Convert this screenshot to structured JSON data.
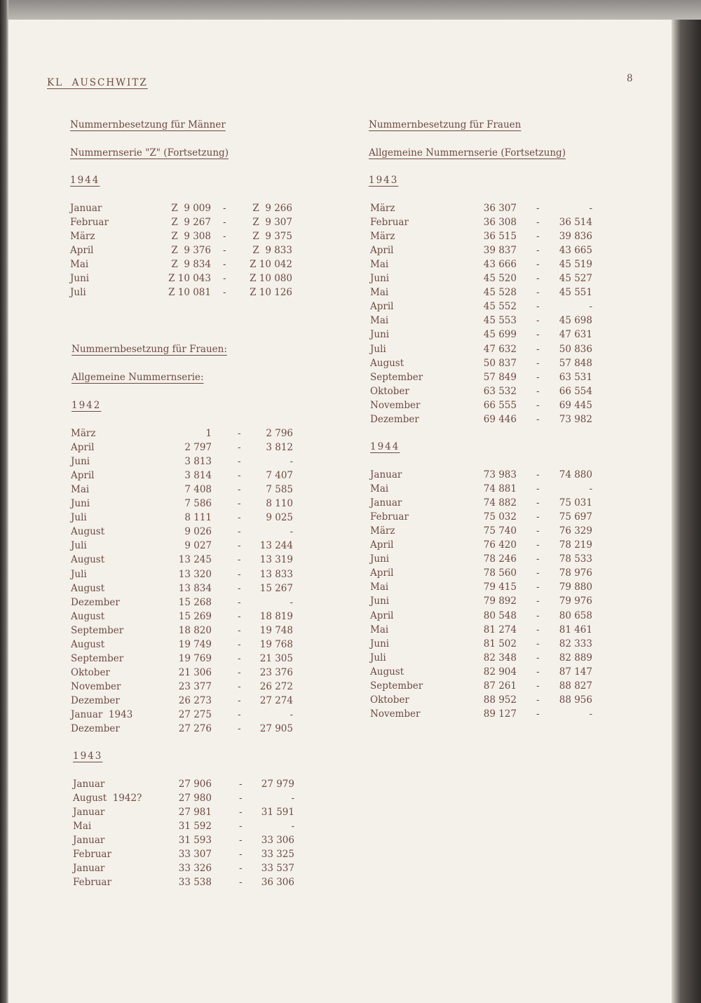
{
  "header": {
    "title": "KL  AUSCHWITZ",
    "page_number": "8"
  },
  "left": {
    "men_heading": "Nummernbesetzung für Männer",
    "z_series_heading": "Nummernserie \"Z\" (Fortsetzung)",
    "z_year": "1944",
    "z_rows": [
      [
        "Januar",
        "Z  9 009",
        "-",
        "Z  9 266"
      ],
      [
        "Februar",
        "Z  9 267",
        "-",
        "Z  9 307"
      ],
      [
        "März",
        "Z  9 308",
        "-",
        "Z  9 375"
      ],
      [
        "April",
        "Z  9 376",
        "-",
        "Z  9 833"
      ],
      [
        "Mai",
        "Z  9 834",
        "-",
        "Z 10 042"
      ],
      [
        "Juni",
        "Z 10 043",
        "-",
        "Z 10 080"
      ],
      [
        "Juli",
        "Z 10 081",
        "-",
        "Z 10 126"
      ]
    ],
    "women_heading": "Nummernbesetzung für Frauen:",
    "general_heading": "Allgemeine Nummernserie:",
    "year_1942": "1942",
    "rows_1942": [
      [
        "März",
        "1",
        "-",
        "2 796"
      ],
      [
        "April",
        "2 797",
        "-",
        "3 812"
      ],
      [
        "Juni",
        "3 813",
        "-",
        "-"
      ],
      [
        "April",
        "3 814",
        "-",
        "7 407"
      ],
      [
        "Mai",
        "7 408",
        "-",
        "7 585"
      ],
      [
        "Juni",
        "7 586",
        "-",
        "8 110"
      ],
      [
        "Juli",
        "8 111",
        "-",
        "9 025"
      ],
      [
        "August",
        "9 026",
        "-",
        "-"
      ],
      [
        "Juli",
        "9 027",
        "-",
        "13 244"
      ],
      [
        "August",
        "13 245",
        "-",
        "13 319"
      ],
      [
        "Juli",
        "13 320",
        "-",
        "13 833"
      ],
      [
        "August",
        "13 834",
        "-",
        "15 267"
      ],
      [
        "Dezember",
        "15 268",
        "-",
        "-"
      ],
      [
        "August",
        "15 269",
        "-",
        "18 819"
      ],
      [
        "September",
        "18 820",
        "-",
        "19 748"
      ],
      [
        "August",
        "19 749",
        "-",
        "19 768"
      ],
      [
        "September",
        "19 769",
        "-",
        "21 305"
      ],
      [
        "Oktober",
        "21 306",
        "-",
        "23 376"
      ],
      [
        "November",
        "23 377",
        "-",
        "26 272"
      ],
      [
        "Dezember",
        "26 273",
        "-",
        "27 274"
      ],
      [
        "Januar  1943",
        "27 275",
        "-",
        "-"
      ],
      [
        "Dezember",
        "27 276",
        "-",
        "27 905"
      ]
    ],
    "year_1943": "1943",
    "rows_1943": [
      [
        "Januar",
        "27 906",
        "-",
        "27 979"
      ],
      [
        "August  1942?",
        "27 980",
        "-",
        "-"
      ],
      [
        "Januar",
        "27 981",
        "-",
        "31 591"
      ],
      [
        "Mai",
        "31 592",
        "-",
        "-"
      ],
      [
        "Januar",
        "31 593",
        "-",
        "33 306"
      ],
      [
        "Februar",
        "33 307",
        "-",
        "33 325"
      ],
      [
        "Januar",
        "33 326",
        "-",
        "33 537"
      ],
      [
        "Februar",
        "33 538",
        "-",
        "36 306"
      ]
    ]
  },
  "right": {
    "women_heading": "Nummernbesetzung für Frauen",
    "general_heading": "Allgemeine Nummernserie (Fortsetzung)",
    "year_1943": "1943",
    "rows_1943": [
      [
        "März",
        "36 307",
        "-",
        "-"
      ],
      [
        "Februar",
        "36 308",
        "-",
        "36 514"
      ],
      [
        "März",
        "36 515",
        "-",
        "39 836"
      ],
      [
        "April",
        "39 837",
        "-",
        "43 665"
      ],
      [
        "Mai",
        "43 666",
        "-",
        "45 519"
      ],
      [
        "Juni",
        "45 520",
        "-",
        "45 527"
      ],
      [
        "Mai",
        "45 528",
        "-",
        "45 551"
      ],
      [
        "April",
        "45 552",
        "-",
        "-"
      ],
      [
        "Mai",
        "45 553",
        "-",
        "45 698"
      ],
      [
        "Juni",
        "45 699",
        "-",
        "47 631"
      ],
      [
        "Juli",
        "47 632",
        "-",
        "50 836"
      ],
      [
        "August",
        "50 837",
        "-",
        "57 848"
      ],
      [
        "September",
        "57 849",
        "-",
        "63 531"
      ],
      [
        "Oktober",
        "63 532",
        "-",
        "66 554"
      ],
      [
        "November",
        "66 555",
        "-",
        "69 445"
      ],
      [
        "Dezember",
        "69 446",
        "-",
        "73 982"
      ]
    ],
    "year_1944": "1944",
    "rows_1944": [
      [
        "Januar",
        "73 983",
        "-",
        "74 880"
      ],
      [
        "Mai",
        "74 881",
        "-",
        "-"
      ],
      [
        "Januar",
        "74 882",
        "-",
        "75 031"
      ],
      [
        "Februar",
        "75 032",
        "-",
        "75 697"
      ],
      [
        "März",
        "75 740",
        "-",
        "76 329"
      ],
      [
        "April",
        "76 420",
        "-",
        "78 219"
      ],
      [
        "Juni",
        "78 246",
        "-",
        "78 533"
      ],
      [
        "April",
        "78 560",
        "-",
        "78 976"
      ],
      [
        "Mai",
        "79 415",
        "-",
        "79 880"
      ],
      [
        "Juni",
        "79 892",
        "-",
        "79 976"
      ],
      [
        "April",
        "80 548",
        "-",
        "80 658"
      ],
      [
        "Mai",
        "81 274",
        "-",
        "81 461"
      ],
      [
        "Juni",
        "81 502",
        "-",
        "82 333"
      ],
      [
        "Juli",
        "82 348",
        "-",
        "82 889"
      ],
      [
        "August",
        "82 904",
        "-",
        "87 147"
      ],
      [
        "September",
        "87 261",
        "-",
        "88 827"
      ],
      [
        "Oktober",
        "88 952",
        "-",
        "88 956"
      ],
      [
        "November",
        "89 127",
        "-",
        "-"
      ]
    ]
  }
}
